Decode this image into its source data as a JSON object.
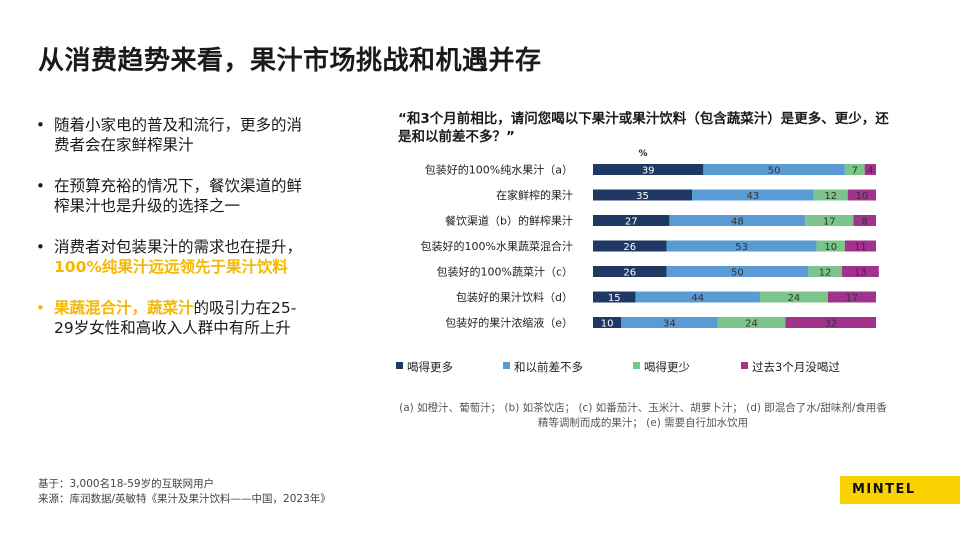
{
  "title": "从消费趋势来看，果汁市场挑战和机遇并存",
  "bullets": [
    {
      "text": "随着小家电的普及和流行，更多的消费者会在家鲜榨果汁"
    },
    {
      "text": "在预算充裕的情况下，餐饮渠道的鲜榨果汁也是升级的选择之一"
    },
    {
      "pre": "消费者对包装果汁的需求也在提升，",
      "hl": "100%纯果汁远远领先于果汁饮料"
    },
    {
      "hl1": "果蔬混合汁",
      "sep": "，",
      "hl2": "蔬菜汁",
      "post": "的吸引力在25-29岁女性和高收入人群中有所上升"
    }
  ],
  "question": "“和3个月前相比，请问您喝以下果汁或果汁饮料（包含蔬菜汁）是更多、更少，还是和以前差不多？”",
  "footnote": "(a) 如橙汁、葡萄汁； (b) 如茶饮店； (c) 如番茄汁、玉米汁、胡萝卜汁； (d) 即混合了水/甜味剂/食用香精等调制而成的果汁； (e) 需要自行加水饮用",
  "base_note": "基于：3,000名18-59岁的互联网用户",
  "source_note": "来源：库润数据/英敏特《果汁及果汁饮料——中国，2023年》",
  "logo_text": "MINTEL",
  "colors": {
    "series1": "#1f3864",
    "series2": "#5b9bd5",
    "series3": "#7cc58a",
    "series4": "#a1338c",
    "highlight": "#f5b800",
    "logo_bg": "#f7d200"
  },
  "chart_data": {
    "type": "bar",
    "orientation": "horizontal",
    "stacked": true,
    "unit_label": "%",
    "xlim": [
      0,
      100
    ],
    "legend_position": "bottom",
    "categories": [
      "包装好的100%纯水果汁（a）",
      "在家鲜榨的果汁",
      "餐饮渠道（b）的鲜榨果汁",
      "包装好的100%水果蔬菜混合汁",
      "包装好的100%蔬菜汁（c）",
      "包装好的果汁饮料（d）",
      "包装好的果汁浓缩液（e）"
    ],
    "series": [
      {
        "name": "喝得更多",
        "values": [
          39,
          35,
          27,
          26,
          26,
          15,
          10
        ]
      },
      {
        "name": "和以前差不多",
        "values": [
          50,
          43,
          48,
          53,
          50,
          44,
          34
        ]
      },
      {
        "name": "喝得更少",
        "values": [
          7,
          12,
          17,
          10,
          12,
          24,
          24
        ]
      },
      {
        "name": "过去3个月没喝过",
        "values": [
          4,
          10,
          8,
          11,
          13,
          17,
          32
        ]
      }
    ]
  }
}
